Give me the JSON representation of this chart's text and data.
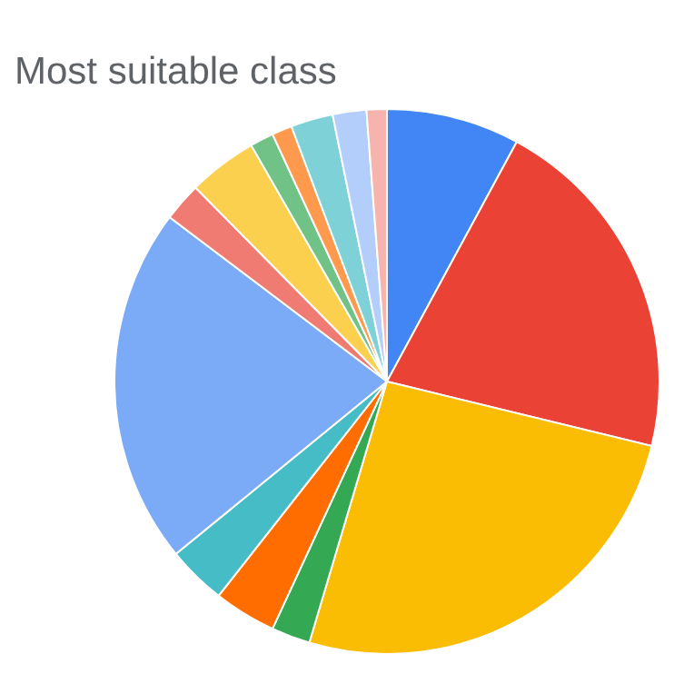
{
  "chart_data": {
    "type": "pie",
    "title": "Most suitable class",
    "categories": [
      null,
      null,
      null,
      null,
      null,
      null,
      null,
      null,
      null,
      null,
      null,
      null,
      null,
      null
    ],
    "values": [
      7.9,
      20.9,
      25.8,
      2.3,
      3.7,
      3.5,
      21.2,
      2.3,
      4.1,
      1.4,
      1.2,
      2.5,
      2.0,
      1.2
    ],
    "colors": [
      "#4285f4",
      "#ea4335",
      "#fbbc04",
      "#34a853",
      "#ff6d01",
      "#46bdc6",
      "#7baaf7",
      "#f07b72",
      "#fcd04f",
      "#71c287",
      "#ff994d",
      "#7ed1d7",
      "#b3cefb",
      "#f7b4ae"
    ],
    "legend": false
  }
}
